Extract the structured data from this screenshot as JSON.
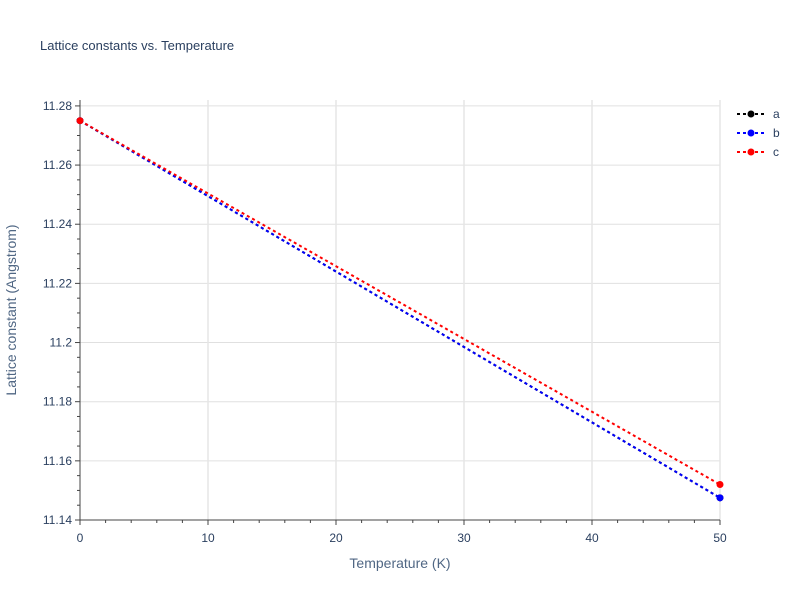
{
  "chart_data": {
    "type": "line",
    "title": "Lattice constants vs. Temperature",
    "xlabel": "Temperature (K)",
    "ylabel": "Lattice constant (Angstrom)",
    "xlim": [
      0,
      50
    ],
    "ylim": [
      11.14,
      11.282
    ],
    "x_ticks": [
      "0",
      "10",
      "20",
      "30",
      "40",
      "50"
    ],
    "y_ticks": [
      "11.14",
      "11.16",
      "11.18",
      "11.2",
      "11.22",
      "11.24",
      "11.26",
      "11.28"
    ],
    "x_tick_values": [
      0,
      10,
      20,
      30,
      40,
      50
    ],
    "y_tick_values": [
      11.14,
      11.16,
      11.18,
      11.2,
      11.22,
      11.24,
      11.26,
      11.28
    ],
    "grid": true,
    "legend_position": "top-right",
    "series": [
      {
        "name": "a",
        "color": "#000000",
        "x": [
          0,
          50
        ],
        "y": [
          11.275,
          11.1475
        ]
      },
      {
        "name": "b",
        "color": "#0000ff",
        "x": [
          0,
          50
        ],
        "y": [
          11.275,
          11.1475
        ]
      },
      {
        "name": "c",
        "color": "#ff0000",
        "x": [
          0,
          50
        ],
        "y": [
          11.275,
          11.152
        ]
      }
    ]
  }
}
